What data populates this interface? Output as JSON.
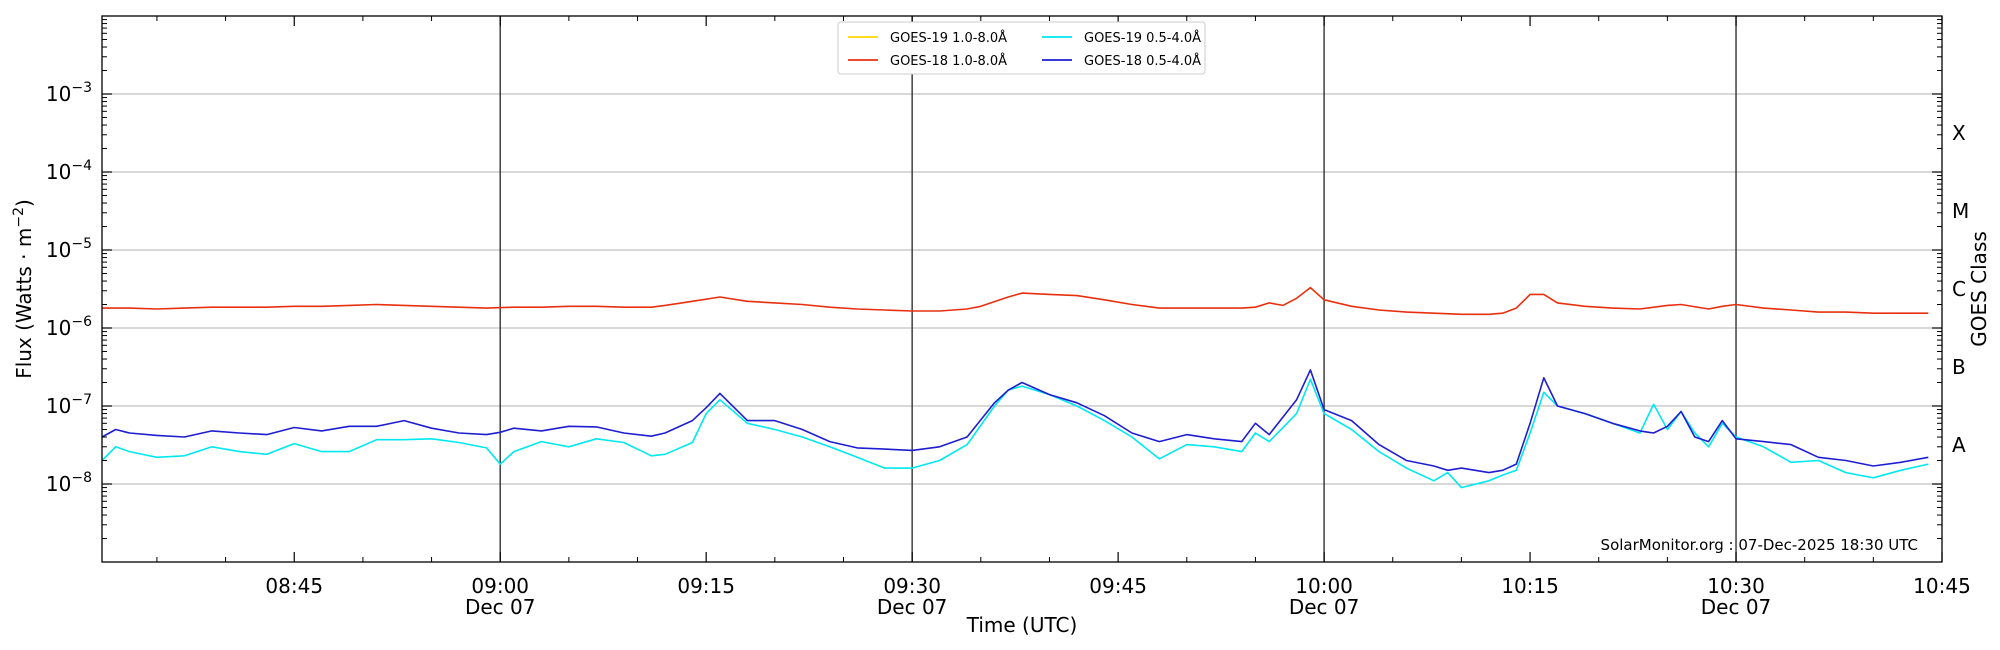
{
  "chart_data": {
    "type": "line",
    "title": "",
    "xlabel": "Time (UTC)",
    "ylabel": "Flux (Watts · m⁻²)",
    "y2label": "GOES Class",
    "yscale": "log",
    "ylim": [
      1e-09,
      0.01
    ],
    "xlim": [
      "08:31",
      "10:45"
    ],
    "y_ticks": [
      {
        "value": 1e-08,
        "label": "10",
        "exp": "−8"
      },
      {
        "value": 1e-07,
        "label": "10",
        "exp": "−7"
      },
      {
        "value": 1e-06,
        "label": "10",
        "exp": "−6"
      },
      {
        "value": 1e-05,
        "label": "10",
        "exp": "−5"
      },
      {
        "value": 0.0001,
        "label": "10",
        "exp": "−4"
      },
      {
        "value": 0.001,
        "label": "10",
        "exp": "−3"
      }
    ],
    "x_ticks": [
      {
        "time": "08:45",
        "label": "08:45",
        "sublabel": ""
      },
      {
        "time": "09:00",
        "label": "09:00",
        "sublabel": "Dec 07"
      },
      {
        "time": "09:15",
        "label": "09:15",
        "sublabel": ""
      },
      {
        "time": "09:30",
        "label": "09:30",
        "sublabel": "Dec 07"
      },
      {
        "time": "09:45",
        "label": "09:45",
        "sublabel": ""
      },
      {
        "time": "10:00",
        "label": "10:00",
        "sublabel": "Dec 07"
      },
      {
        "time": "10:15",
        "label": "10:15",
        "sublabel": ""
      },
      {
        "time": "10:30",
        "label": "10:30",
        "sublabel": "Dec 07"
      },
      {
        "time": "10:45",
        "label": "10:45",
        "sublabel": ""
      }
    ],
    "vlines": [
      "09:00",
      "09:30",
      "10:00",
      "10:30"
    ],
    "goes_classes": [
      {
        "label": "X",
        "value": 0.000316
      },
      {
        "label": "M",
        "value": 3.16e-05
      },
      {
        "label": "C",
        "value": 3.16e-06
      },
      {
        "label": "B",
        "value": 3.16e-07
      },
      {
        "label": "A",
        "value": 3.16e-08
      }
    ],
    "grid": true,
    "legend_position": "top-center",
    "annotation": "SolarMonitor.org : 07-Dec-2025 18:30 UTC",
    "series": [
      {
        "name": "GOES-19 1.0-8.0Å",
        "color": "#ffd700",
        "x": [],
        "y": []
      },
      {
        "name": "GOES-18 1.0-8.0Å",
        "color": "#e8300f",
        "x": [
          "08:31",
          "08:33",
          "08:35",
          "08:37",
          "08:39",
          "08:41",
          "08:43",
          "08:45",
          "08:47",
          "08:49",
          "08:51",
          "08:53",
          "08:55",
          "08:57",
          "08:59",
          "09:01",
          "09:03",
          "09:05",
          "09:07",
          "09:09",
          "09:11",
          "09:12",
          "09:14",
          "09:16",
          "09:18",
          "09:20",
          "09:22",
          "09:24",
          "09:26",
          "09:28",
          "09:30",
          "09:32",
          "09:34",
          "09:35",
          "09:37",
          "09:38",
          "09:40",
          "09:42",
          "09:44",
          "09:46",
          "09:48",
          "09:50",
          "09:52",
          "09:54",
          "09:55",
          "09:56",
          "09:57",
          "09:58",
          "09:59",
          "10:00",
          "10:02",
          "10:04",
          "10:06",
          "10:08",
          "10:10",
          "10:12",
          "10:13",
          "10:14",
          "10:15",
          "10:16",
          "10:17",
          "10:19",
          "10:21",
          "10:23",
          "10:25",
          "10:26",
          "10:28",
          "10:29",
          "10:30",
          "10:32",
          "10:34",
          "10:36",
          "10:38",
          "10:40",
          "10:42",
          "10:44"
        ],
        "y": [
          1.8e-06,
          1.8e-06,
          1.75e-06,
          1.8e-06,
          1.85e-06,
          1.85e-06,
          1.85e-06,
          1.9e-06,
          1.9e-06,
          1.95e-06,
          2e-06,
          1.95e-06,
          1.9e-06,
          1.85e-06,
          1.8e-06,
          1.85e-06,
          1.85e-06,
          1.9e-06,
          1.9e-06,
          1.85e-06,
          1.85e-06,
          1.95e-06,
          2.2e-06,
          2.5e-06,
          2.2e-06,
          2.1e-06,
          2e-06,
          1.85e-06,
          1.75e-06,
          1.7e-06,
          1.65e-06,
          1.65e-06,
          1.75e-06,
          1.9e-06,
          2.5e-06,
          2.8e-06,
          2.7e-06,
          2.6e-06,
          2.3e-06,
          2e-06,
          1.8e-06,
          1.8e-06,
          1.8e-06,
          1.8e-06,
          1.85e-06,
          2.1e-06,
          1.95e-06,
          2.4e-06,
          3.3e-06,
          2.3e-06,
          1.9e-06,
          1.7e-06,
          1.6e-06,
          1.55e-06,
          1.5e-06,
          1.5e-06,
          1.55e-06,
          1.8e-06,
          2.7e-06,
          2.7e-06,
          2.1e-06,
          1.9e-06,
          1.8e-06,
          1.75e-06,
          1.95e-06,
          2e-06,
          1.75e-06,
          1.9e-06,
          2e-06,
          1.8e-06,
          1.7e-06,
          1.6e-06,
          1.6e-06,
          1.55e-06,
          1.55e-06,
          1.55e-06
        ]
      },
      {
        "name": "GOES-19 0.5-4.0Å",
        "color": "#00e8f0",
        "x": [
          "08:31",
          "08:32",
          "08:33",
          "08:35",
          "08:37",
          "08:39",
          "08:41",
          "08:43",
          "08:45",
          "08:47",
          "08:49",
          "08:51",
          "08:53",
          "08:55",
          "08:57",
          "08:59",
          "09:00",
          "09:01",
          "09:03",
          "09:05",
          "09:07",
          "09:09",
          "09:11",
          "09:12",
          "09:14",
          "09:15",
          "09:16",
          "09:18",
          "09:20",
          "09:22",
          "09:24",
          "09:26",
          "09:28",
          "09:30",
          "09:32",
          "09:34",
          "09:36",
          "09:37",
          "09:38",
          "09:40",
          "09:42",
          "09:44",
          "09:46",
          "09:48",
          "09:50",
          "09:52",
          "09:54",
          "09:55",
          "09:56",
          "09:58",
          "09:59",
          "10:00",
          "10:02",
          "10:04",
          "10:06",
          "10:08",
          "10:09",
          "10:10",
          "10:12",
          "10:13",
          "10:14",
          "10:15",
          "10:16",
          "10:17",
          "10:19",
          "10:21",
          "10:23",
          "10:24",
          "10:25",
          "10:26",
          "10:27",
          "10:28",
          "10:29",
          "10:30",
          "10:32",
          "10:34",
          "10:36",
          "10:38",
          "10:40",
          "10:42",
          "10:44"
        ],
        "y": [
          2e-08,
          3e-08,
          2.6e-08,
          2.2e-08,
          2.3e-08,
          3e-08,
          2.6e-08,
          2.4e-08,
          3.3e-08,
          2.6e-08,
          2.6e-08,
          3.7e-08,
          3.7e-08,
          3.8e-08,
          3.4e-08,
          2.9e-08,
          1.8e-08,
          2.6e-08,
          3.5e-08,
          3e-08,
          3.8e-08,
          3.4e-08,
          2.3e-08,
          2.4e-08,
          3.4e-08,
          8e-08,
          1.2e-07,
          6e-08,
          5e-08,
          4e-08,
          3e-08,
          2.2e-08,
          1.6e-08,
          1.6e-08,
          2e-08,
          3.2e-08,
          1e-07,
          1.6e-07,
          1.8e-07,
          1.4e-07,
          1e-07,
          6.5e-08,
          4e-08,
          2.1e-08,
          3.2e-08,
          3e-08,
          2.6e-08,
          4.5e-08,
          3.5e-08,
          8e-08,
          2.2e-07,
          8e-08,
          5e-08,
          2.6e-08,
          1.6e-08,
          1.1e-08,
          1.4e-08,
          9e-09,
          1.1e-08,
          1.3e-08,
          1.5e-08,
          4.5e-08,
          1.5e-07,
          1e-07,
          8e-08,
          6e-08,
          4.5e-08,
          1.05e-07,
          5e-08,
          8.5e-08,
          4.5e-08,
          3e-08,
          6e-08,
          4e-08,
          3e-08,
          1.9e-08,
          2e-08,
          1.4e-08,
          1.2e-08,
          1.5e-08,
          1.8e-08
        ]
      },
      {
        "name": "GOES-18 0.5-4.0Å",
        "color": "#1e1ed0",
        "x": [
          "08:31",
          "08:32",
          "08:33",
          "08:35",
          "08:37",
          "08:39",
          "08:41",
          "08:43",
          "08:45",
          "08:47",
          "08:49",
          "08:51",
          "08:53",
          "08:55",
          "08:57",
          "08:59",
          "09:00",
          "09:01",
          "09:03",
          "09:05",
          "09:07",
          "09:09",
          "09:11",
          "09:12",
          "09:14",
          "09:15",
          "09:16",
          "09:18",
          "09:20",
          "09:22",
          "09:24",
          "09:26",
          "09:28",
          "09:30",
          "09:32",
          "09:34",
          "09:36",
          "09:37",
          "09:38",
          "09:40",
          "09:42",
          "09:44",
          "09:46",
          "09:48",
          "09:50",
          "09:52",
          "09:54",
          "09:55",
          "09:56",
          "09:58",
          "09:59",
          "10:00",
          "10:02",
          "10:04",
          "10:06",
          "10:08",
          "10:09",
          "10:10",
          "10:12",
          "10:13",
          "10:14",
          "10:15",
          "10:16",
          "10:17",
          "10:19",
          "10:21",
          "10:23",
          "10:24",
          "10:25",
          "10:26",
          "10:27",
          "10:28",
          "10:29",
          "10:30",
          "10:32",
          "10:34",
          "10:36",
          "10:38",
          "10:40",
          "10:42",
          "10:44"
        ],
        "y": [
          4e-08,
          5e-08,
          4.5e-08,
          4.2e-08,
          4e-08,
          4.8e-08,
          4.5e-08,
          4.3e-08,
          5.3e-08,
          4.8e-08,
          5.5e-08,
          5.5e-08,
          6.5e-08,
          5.2e-08,
          4.5e-08,
          4.3e-08,
          4.6e-08,
          5.2e-08,
          4.8e-08,
          5.5e-08,
          5.4e-08,
          4.5e-08,
          4.1e-08,
          4.5e-08,
          6.5e-08,
          9.5e-08,
          1.45e-07,
          6.5e-08,
          6.5e-08,
          5e-08,
          3.5e-08,
          2.9e-08,
          2.8e-08,
          2.7e-08,
          3e-08,
          4e-08,
          1.1e-07,
          1.6e-07,
          2e-07,
          1.4e-07,
          1.1e-07,
          7.5e-08,
          4.5e-08,
          3.5e-08,
          4.3e-08,
          3.8e-08,
          3.5e-08,
          6e-08,
          4.3e-08,
          1.2e-07,
          2.9e-07,
          9e-08,
          6.5e-08,
          3.2e-08,
          2e-08,
          1.7e-08,
          1.5e-08,
          1.6e-08,
          1.4e-08,
          1.5e-08,
          1.8e-08,
          6e-08,
          2.3e-07,
          1e-07,
          8e-08,
          6e-08,
          4.8e-08,
          4.5e-08,
          5.5e-08,
          8.5e-08,
          4e-08,
          3.5e-08,
          6.5e-08,
          3.8e-08,
          3.5e-08,
          3.2e-08,
          2.2e-08,
          2e-08,
          1.7e-08,
          1.9e-08,
          2.2e-08
        ]
      }
    ]
  }
}
